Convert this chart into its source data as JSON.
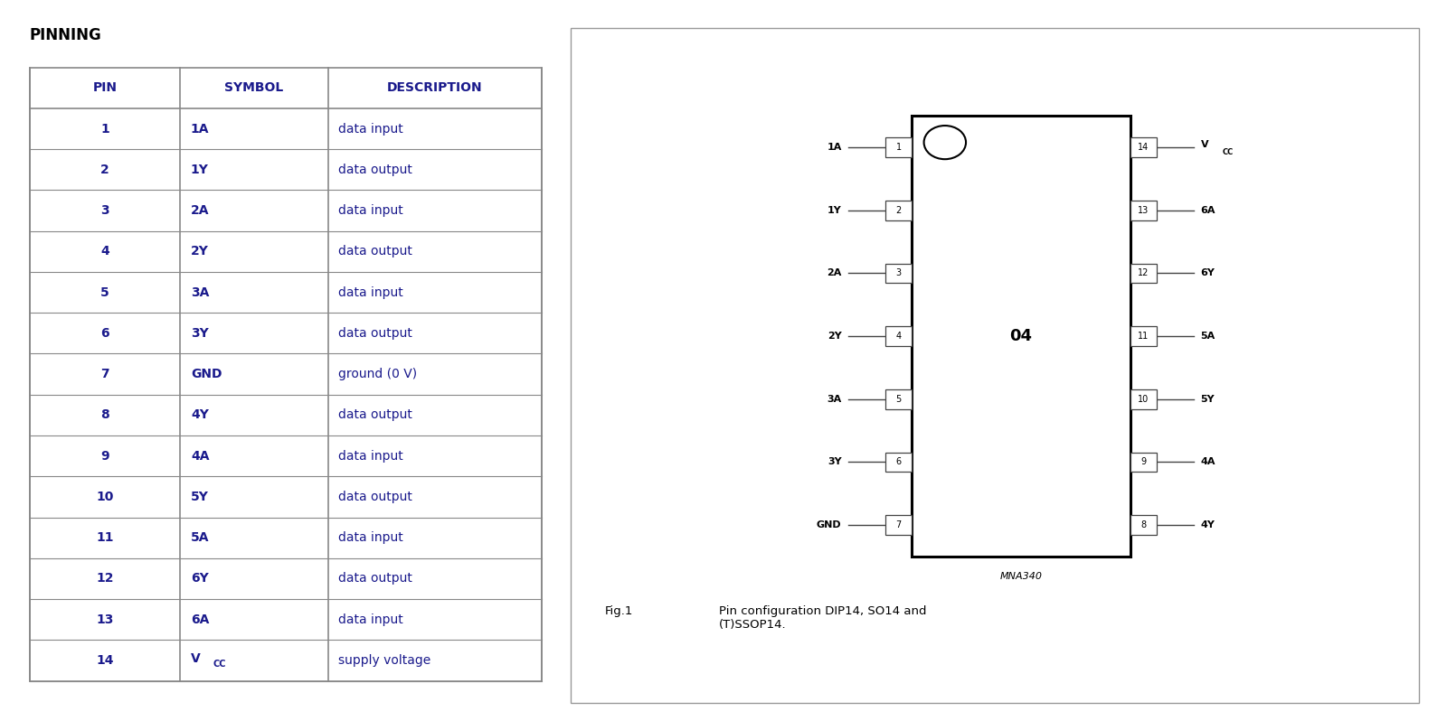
{
  "title": "PINNING",
  "title_fontsize": 12,
  "bg_color": "#ffffff",
  "table_header": [
    "PIN",
    "SYMBOL",
    "DESCRIPTION"
  ],
  "table_rows": [
    [
      "1",
      "1A",
      "data input"
    ],
    [
      "2",
      "1Y",
      "data output"
    ],
    [
      "3",
      "2A",
      "data input"
    ],
    [
      "4",
      "2Y",
      "data output"
    ],
    [
      "5",
      "3A",
      "data input"
    ],
    [
      "6",
      "3Y",
      "data output"
    ],
    [
      "7",
      "GND",
      "ground (0 V)"
    ],
    [
      "8",
      "4Y",
      "data output"
    ],
    [
      "9",
      "4A",
      "data input"
    ],
    [
      "10",
      "5Y",
      "data output"
    ],
    [
      "11",
      "5A",
      "data input"
    ],
    [
      "12",
      "6Y",
      "data output"
    ],
    [
      "13",
      "6A",
      "data input"
    ],
    [
      "14",
      "VCC",
      "supply voltage"
    ]
  ],
  "left_pins": [
    "1A",
    "1Y",
    "2A",
    "2Y",
    "3A",
    "3Y",
    "GND"
  ],
  "left_pin_nums": [
    1,
    2,
    3,
    4,
    5,
    6,
    7
  ],
  "right_pins": [
    "VCC",
    "6A",
    "6Y",
    "5A",
    "5Y",
    "4A",
    "4Y"
  ],
  "right_pin_nums": [
    14,
    13,
    12,
    11,
    10,
    9,
    8
  ],
  "chip_label": "04",
  "fig_label": "Fig.1",
  "fig_caption": "Pin configuration DIP14, SO14 and\n(T)SSOP14.",
  "mna_label": "MNA340",
  "text_color": "#000000",
  "header_color": "#1a1a8c",
  "table_line_color": "#888888",
  "chip_box_color": "#000000",
  "outer_box_color": "#999999",
  "pin_box_color": "#444444"
}
